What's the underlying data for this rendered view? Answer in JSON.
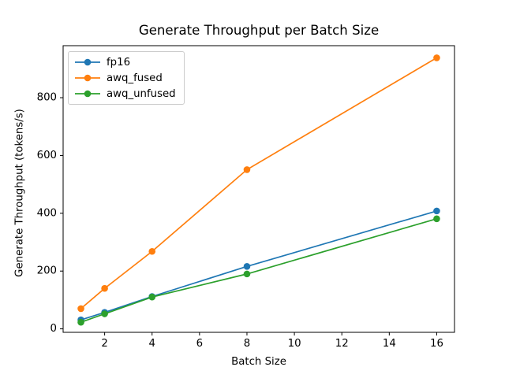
{
  "chart_data": {
    "type": "line",
    "title": "Generate Throughput per Batch Size",
    "xlabel": "Batch Size",
    "ylabel": "Generate Throughput (tokens/s)",
    "x": [
      1,
      2,
      4,
      8,
      16
    ],
    "series": [
      {
        "name": "fp16",
        "color": "#1f77b4",
        "marker": "circle",
        "values": [
          31,
          57,
          112,
          216,
          408
        ]
      },
      {
        "name": "awq_fused",
        "color": "#ff7f0e",
        "marker": "circle",
        "values": [
          70,
          140,
          268,
          551,
          938
        ]
      },
      {
        "name": "awq_unfused",
        "color": "#2ca02c",
        "marker": "circle",
        "values": [
          23,
          52,
          110,
          190,
          381
        ]
      }
    ],
    "xticks": [
      2,
      4,
      6,
      8,
      10,
      12,
      14,
      16
    ],
    "yticks": [
      0,
      200,
      400,
      600,
      800
    ],
    "xlim": [
      0.25,
      16.75
    ],
    "ylim": [
      -12,
      980
    ],
    "grid": false,
    "legend_position": "upper left",
    "spine_color": "#000000",
    "background_color": "#ffffff"
  }
}
